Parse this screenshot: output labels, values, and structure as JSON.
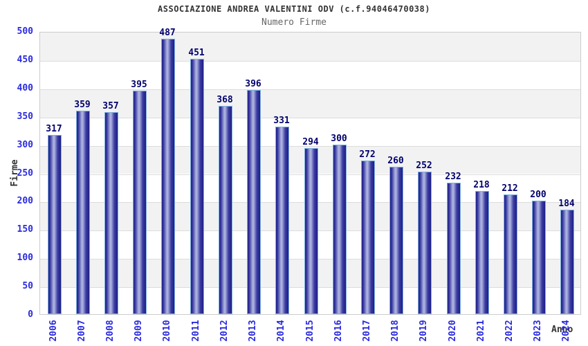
{
  "chart_data": {
    "type": "bar",
    "title": "ASSOCIAZIONE ANDREA VALENTINI ODV (c.f.94046470038)",
    "subtitle": "Numero Firme",
    "xlabel": "Anno",
    "ylabel": "Firme",
    "categories": [
      "2006",
      "2007",
      "2008",
      "2009",
      "2010",
      "2011",
      "2012",
      "2013",
      "2014",
      "2015",
      "2016",
      "2017",
      "2018",
      "2019",
      "2020",
      "2021",
      "2022",
      "2023",
      "2024"
    ],
    "values": [
      317,
      359,
      357,
      395,
      487,
      451,
      368,
      396,
      331,
      294,
      300,
      272,
      260,
      252,
      232,
      218,
      212,
      200,
      184
    ],
    "ylim": [
      0,
      500
    ],
    "ytick_step": 50,
    "grid": true,
    "legend": "none",
    "bands_alternating": true,
    "colors": {
      "title": "#333333",
      "subtitle": "#666666",
      "axis_title": "#333333",
      "tick_label": "#2a2ae0",
      "value_label": "#00006e",
      "bar_dark": "#1d1d88",
      "bar_mid": "#3c3ca2",
      "bar_light": "#aab0de",
      "bar_border": "#7fb2dd",
      "plot_border": "#cccccc",
      "gridline": "#dcdcdc",
      "band": "#f2f2f2",
      "background": "#ffffff"
    }
  }
}
